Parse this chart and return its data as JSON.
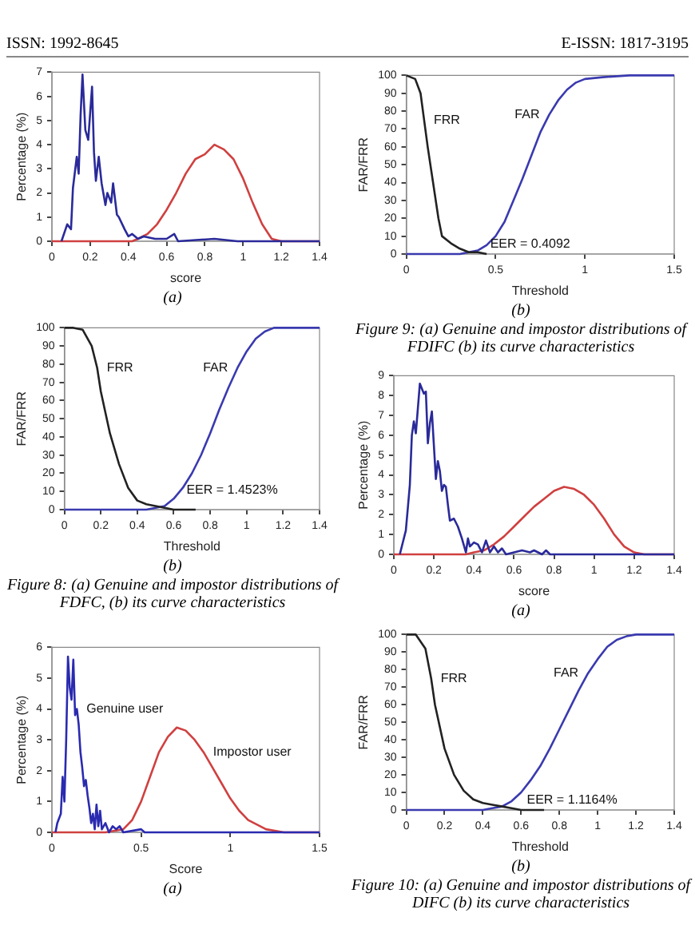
{
  "chart_data": [
    {
      "type": "other",
      "annotations": [
        "ISSN: 1992-8645",
        "E-ISSN: 1817-3195"
      ]
    },
    {
      "type": "line",
      "xlabel": "score",
      "ylabel": "Percentage (%)",
      "xlim": [
        0,
        1.4
      ],
      "xticks": [
        0,
        0.2,
        0.4,
        0.6,
        0.8,
        1,
        1.2,
        1.4
      ],
      "ylim": [
        0,
        7
      ],
      "yticks": [
        0,
        1,
        2,
        3,
        4,
        5,
        6,
        7
      ],
      "marker": "none",
      "annotations": [
        "(a)"
      ],
      "series": [
        {
          "color": "#2a2a9a",
          "x": [
            0.05,
            0.08,
            0.1,
            0.11,
            0.13,
            0.14,
            0.15,
            0.16,
            0.175,
            0.19,
            0.21,
            0.22,
            0.23,
            0.245,
            0.26,
            0.28,
            0.29,
            0.31,
            0.32,
            0.34,
            0.35,
            0.38,
            0.4,
            0.42,
            0.45,
            0.48,
            0.54,
            0.6,
            0.64,
            0.66,
            0.85,
            0.97,
            1.4
          ],
          "values": [
            0,
            0.7,
            0.5,
            2.2,
            3.5,
            2.8,
            5.2,
            6.9,
            4.6,
            4.2,
            6.4,
            3.7,
            2.5,
            3.5,
            2.4,
            1.5,
            2.0,
            1.6,
            2.4,
            1.1,
            1.0,
            0.5,
            0.2,
            0.3,
            0.1,
            0.2,
            0.1,
            0.1,
            0.3,
            0,
            0.1,
            0,
            0
          ]
        },
        {
          "color": "#d04040",
          "x": [
            0,
            0.42,
            0.45,
            0.5,
            0.55,
            0.6,
            0.65,
            0.7,
            0.75,
            0.8,
            0.85,
            0.9,
            0.95,
            1.0,
            1.05,
            1.1,
            1.15,
            1.2,
            1.4
          ],
          "values": [
            0,
            0,
            0.1,
            0.3,
            0.7,
            1.3,
            2.0,
            2.8,
            3.4,
            3.6,
            4.0,
            3.8,
            3.4,
            2.6,
            1.6,
            0.7,
            0.1,
            0,
            0
          ]
        }
      ]
    },
    {
      "type": "line",
      "xlabel": "Threshold",
      "ylabel": "FAR/FRR",
      "xlim": [
        0,
        1.4
      ],
      "xticks": [
        0,
        0.2,
        0.4,
        0.6,
        0.8,
        1,
        1.2,
        1.4
      ],
      "ylim": [
        0,
        100
      ],
      "yticks": [
        0,
        10,
        20,
        30,
        40,
        50,
        60,
        70,
        80,
        90,
        100
      ],
      "marker": "none",
      "annotations": [
        {
          "text": "EER = 1.4523%",
          "x": 0.67,
          "y": 8
        },
        "(b)",
        "Figure 8: (a) Genuine and impostor distributions of FDFC, (b) its curve characteristics"
      ],
      "series": [
        {
          "name": "FRR",
          "color": "#222222",
          "x": [
            0,
            0.05,
            0.1,
            0.15,
            0.18,
            0.2,
            0.25,
            0.3,
            0.35,
            0.4,
            0.45,
            0.5,
            0.55,
            0.6,
            0.7,
            0.72
          ],
          "values": [
            100,
            100,
            99,
            90,
            78,
            65,
            42,
            25,
            12,
            5,
            3,
            2,
            1,
            0,
            0,
            0
          ]
        },
        {
          "name": "FAR",
          "color": "#3a3ab0",
          "x": [
            0,
            0.45,
            0.5,
            0.55,
            0.6,
            0.65,
            0.7,
            0.75,
            0.8,
            0.85,
            0.9,
            0.95,
            1.0,
            1.05,
            1.1,
            1.15,
            1.4
          ],
          "values": [
            0,
            0,
            1,
            2,
            6,
            12,
            20,
            30,
            42,
            55,
            67,
            78,
            87,
            94,
            98,
            100,
            100
          ]
        }
      ]
    },
    {
      "type": "line",
      "xlabel": "Score",
      "ylabel": "Percentage (%)",
      "xlim": [
        0,
        1.5
      ],
      "xticks": [
        0,
        0.5,
        1,
        1.5
      ],
      "ylim": [
        0,
        6
      ],
      "yticks": [
        0,
        1,
        2,
        3,
        4,
        5,
        6
      ],
      "marker": "none",
      "annotations": [
        "(a)"
      ],
      "series": [
        {
          "name": "Genuine user",
          "color": "#2a2ab0",
          "x": [
            0.02,
            0.03,
            0.05,
            0.06,
            0.07,
            0.08,
            0.09,
            0.1,
            0.11,
            0.12,
            0.13,
            0.14,
            0.15,
            0.16,
            0.17,
            0.18,
            0.19,
            0.2,
            0.21,
            0.22,
            0.23,
            0.24,
            0.25,
            0.26,
            0.27,
            0.28,
            0.3,
            0.32,
            0.34,
            0.36,
            0.38,
            0.4,
            0.5,
            0.52,
            1.5
          ],
          "values": [
            0,
            0.3,
            0.6,
            1.8,
            1.0,
            3.0,
            5.7,
            4.7,
            4.3,
            5.6,
            3.8,
            4.0,
            3.5,
            2.6,
            2.1,
            1.5,
            1.7,
            1.2,
            0.8,
            0.3,
            0.6,
            0.1,
            0.9,
            0.2,
            0.7,
            0.1,
            0.3,
            0,
            0.2,
            0.1,
            0.2,
            0,
            0.1,
            0,
            0
          ]
        },
        {
          "name": "Impostor user",
          "color": "#d04040",
          "x": [
            0,
            0.3,
            0.4,
            0.45,
            0.5,
            0.55,
            0.6,
            0.65,
            0.7,
            0.75,
            0.8,
            0.85,
            0.9,
            0.95,
            1.0,
            1.05,
            1.1,
            1.2,
            1.3,
            1.5
          ],
          "values": [
            0,
            0,
            0.1,
            0.4,
            1.0,
            1.8,
            2.6,
            3.1,
            3.4,
            3.3,
            3.0,
            2.6,
            2.1,
            1.6,
            1.1,
            0.7,
            0.4,
            0.1,
            0,
            0
          ]
        }
      ]
    },
    {
      "type": "line",
      "xlabel": "Threshold",
      "ylabel": "FAR/FRR",
      "xlim": [
        0,
        1.5
      ],
      "xticks": [
        0,
        0.5,
        1,
        1.5
      ],
      "ylim": [
        0,
        100
      ],
      "yticks": [
        0,
        10,
        20,
        30,
        40,
        50,
        60,
        70,
        80,
        90,
        100
      ],
      "marker": "none",
      "annotations": [
        {
          "text": "EER = 0.4092",
          "x": 0.47,
          "y": 3
        },
        "(b)",
        "Figure 9: (a) Genuine and impostor distributions of FDIFC (b) its curve characteristics"
      ],
      "series": [
        {
          "name": "FRR",
          "color": "#222222",
          "x": [
            0,
            0.05,
            0.08,
            0.1,
            0.12,
            0.15,
            0.18,
            0.2,
            0.25,
            0.3,
            0.35,
            0.4,
            0.45
          ],
          "values": [
            100,
            98,
            90,
            75,
            60,
            40,
            20,
            10,
            6,
            3,
            1,
            1,
            0
          ]
        },
        {
          "name": "FAR",
          "color": "#3a3ab0",
          "x": [
            0,
            0.3,
            0.35,
            0.4,
            0.45,
            0.5,
            0.55,
            0.6,
            0.65,
            0.7,
            0.75,
            0.8,
            0.85,
            0.9,
            0.95,
            1.0,
            1.1,
            1.25,
            1.5
          ],
          "values": [
            0,
            0,
            1,
            2,
            5,
            10,
            18,
            30,
            42,
            55,
            68,
            78,
            86,
            92,
            96,
            98,
            99,
            100,
            100
          ]
        }
      ]
    },
    {
      "type": "line",
      "xlabel": "score",
      "ylabel": "Percentage (%)",
      "xlim": [
        0,
        1.4
      ],
      "xticks": [
        0,
        0.2,
        0.4,
        0.6,
        0.8,
        1,
        1.2,
        1.4
      ],
      "ylim": [
        0,
        9
      ],
      "yticks": [
        0,
        1,
        2,
        3,
        4,
        5,
        6,
        7,
        8,
        9
      ],
      "marker": "none",
      "annotations": [
        "(a)"
      ],
      "series": [
        {
          "color": "#2a2a9a",
          "x": [
            0.03,
            0.06,
            0.08,
            0.09,
            0.1,
            0.11,
            0.13,
            0.15,
            0.16,
            0.17,
            0.18,
            0.19,
            0.2,
            0.21,
            0.22,
            0.23,
            0.24,
            0.25,
            0.26,
            0.27,
            0.28,
            0.3,
            0.32,
            0.34,
            0.36,
            0.37,
            0.38,
            0.4,
            0.42,
            0.44,
            0.46,
            0.48,
            0.5,
            0.52,
            0.54,
            0.56,
            0.6,
            0.64,
            0.68,
            0.7,
            0.74,
            0.76,
            0.78,
            1.4
          ],
          "values": [
            0,
            1.2,
            3.5,
            6.0,
            6.7,
            6.1,
            8.6,
            8.1,
            8.2,
            5.6,
            6.6,
            7.2,
            5.5,
            3.8,
            4.7,
            4.2,
            3.2,
            3.5,
            3.4,
            2.5,
            1.7,
            1.8,
            1.4,
            0.8,
            0.1,
            0.8,
            0.4,
            0.6,
            0.5,
            0.1,
            0.7,
            0.1,
            0.4,
            0.1,
            0.3,
            0,
            0.1,
            0.2,
            0.1,
            0.2,
            0,
            0.2,
            0,
            0
          ]
        },
        {
          "color": "#d04040",
          "x": [
            0,
            0.36,
            0.4,
            0.45,
            0.5,
            0.55,
            0.6,
            0.65,
            0.7,
            0.75,
            0.8,
            0.85,
            0.9,
            0.95,
            1.0,
            1.05,
            1.1,
            1.15,
            1.2,
            1.25,
            1.4
          ],
          "values": [
            0,
            0,
            0.1,
            0.2,
            0.5,
            0.9,
            1.4,
            1.9,
            2.4,
            2.8,
            3.2,
            3.4,
            3.3,
            3.0,
            2.5,
            1.8,
            1.0,
            0.4,
            0.1,
            0,
            0
          ]
        }
      ]
    },
    {
      "type": "line",
      "xlabel": "Threshold",
      "ylabel": "FAR/FRR",
      "xlim": [
        0,
        1.4
      ],
      "xticks": [
        0,
        0.2,
        0.4,
        0.6,
        0.8,
        1,
        1.2,
        1.4
      ],
      "ylim": [
        0,
        100
      ],
      "yticks": [
        0,
        10,
        20,
        30,
        40,
        50,
        60,
        70,
        80,
        90,
        100
      ],
      "marker": "none",
      "annotations": [
        {
          "text": "EER = 1.1164%",
          "x": 0.63,
          "y": 3
        },
        "(b)",
        "Figure 10: (a) Genuine and impostor distributions of DIFC (b) its curve characteristics"
      ],
      "series": [
        {
          "name": "FRR",
          "color": "#222222",
          "x": [
            0,
            0.05,
            0.1,
            0.13,
            0.15,
            0.2,
            0.25,
            0.3,
            0.35,
            0.4,
            0.45,
            0.5,
            0.55,
            0.6,
            0.7,
            0.72
          ],
          "values": [
            100,
            100,
            92,
            75,
            60,
            35,
            20,
            11,
            6,
            4,
            3,
            2,
            1,
            0,
            0,
            0
          ]
        },
        {
          "name": "FAR",
          "color": "#3a3ab0",
          "x": [
            0,
            0.4,
            0.45,
            0.5,
            0.55,
            0.6,
            0.65,
            0.7,
            0.75,
            0.8,
            0.85,
            0.9,
            0.95,
            1.0,
            1.05,
            1.1,
            1.15,
            1.2,
            1.4
          ],
          "values": [
            0,
            0,
            1,
            2,
            5,
            10,
            17,
            25,
            35,
            46,
            57,
            68,
            78,
            86,
            93,
            97,
            99,
            100,
            100
          ]
        }
      ]
    }
  ]
}
